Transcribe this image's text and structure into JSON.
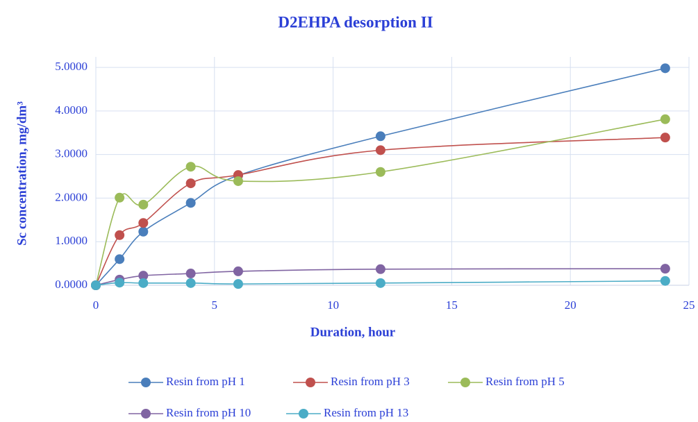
{
  "chart_data": {
    "type": "line",
    "title": "D2EHPA desorption II",
    "x_label": "Duration, hour",
    "y_label": "Sc concentration, mg/dm³",
    "x": [
      0,
      1,
      2,
      4,
      6,
      12,
      24
    ],
    "series": [
      {
        "name": "Resin from pH 1",
        "color": "#4a7ebb",
        "values": [
          0,
          0.6,
          1.23,
          1.89,
          2.52,
          3.42,
          4.98
        ]
      },
      {
        "name": "Resin from pH 3",
        "color": "#c0504d",
        "values": [
          0,
          1.15,
          1.43,
          2.34,
          2.53,
          3.1,
          3.39
        ]
      },
      {
        "name": "Resin from pH 5",
        "color": "#9bbb59",
        "values": [
          0,
          2.01,
          1.85,
          2.72,
          2.39,
          2.6,
          3.81
        ]
      },
      {
        "name": "Resin from pH 10",
        "color": "#8064a2",
        "values": [
          0,
          0.13,
          0.22,
          0.27,
          0.32,
          0.37,
          0.38
        ]
      },
      {
        "name": "Resin from pH 13",
        "color": "#4bacc6",
        "values": [
          0,
          0.06,
          0.05,
          0.05,
          0.03,
          0.05,
          0.1
        ]
      }
    ],
    "xlim": [
      0,
      25
    ],
    "xticks": [
      0,
      5,
      10,
      15,
      20,
      25
    ],
    "ylim": [
      0,
      5.24
    ],
    "yticks": [
      {
        "value": 0,
        "label": "0.0000"
      },
      {
        "value": 1,
        "label": "1.0000"
      },
      {
        "value": 2,
        "label": "2.0000"
      },
      {
        "value": 3,
        "label": "3.0000"
      },
      {
        "value": 4,
        "label": "4.0000"
      },
      {
        "value": 5,
        "label": "5.0000"
      }
    ],
    "grid": true,
    "legend": "bottom"
  }
}
